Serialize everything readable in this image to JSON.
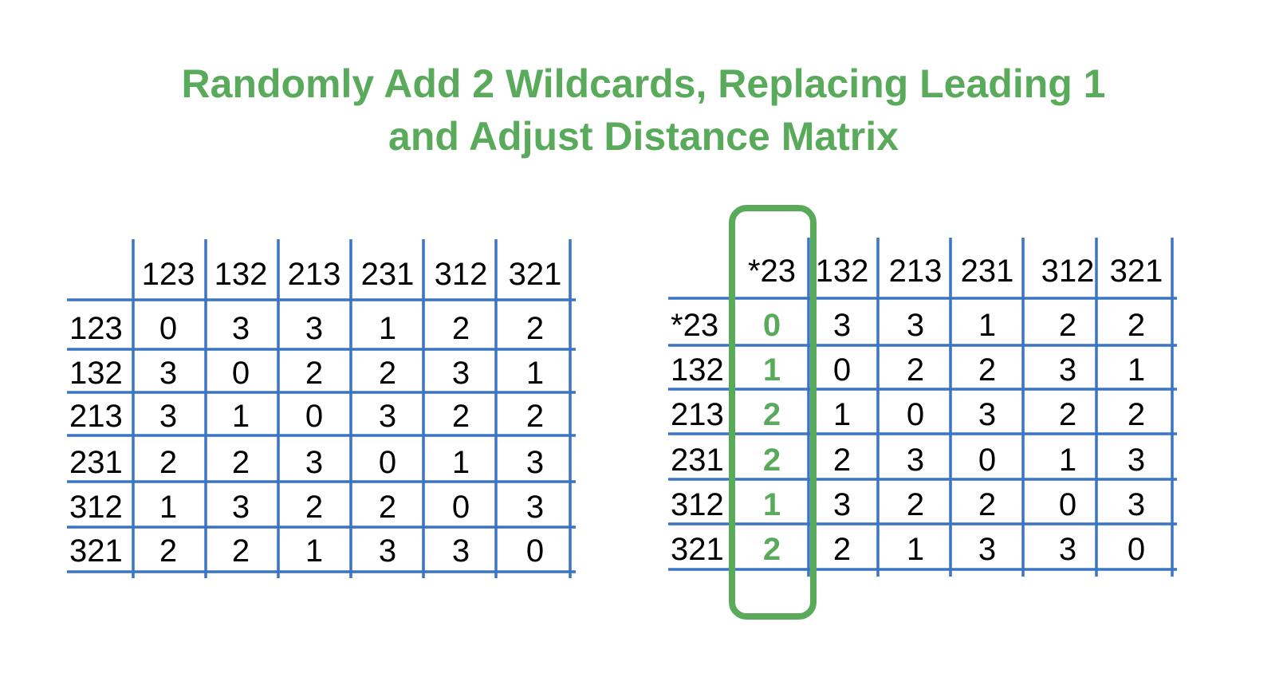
{
  "title": {
    "line1": "Randomly Add 2 Wildcards, Replacing Leading 1",
    "line2": "and Adjust Distance Matrix"
  },
  "colors": {
    "accent": "#5aaa5c",
    "grid": "#3a74c4",
    "text": "#000000"
  },
  "left_matrix": {
    "col_headers": [
      "123",
      "132",
      "213",
      "231",
      "312",
      "321"
    ],
    "row_headers": [
      "123",
      "132",
      "213",
      "231",
      "312",
      "321"
    ],
    "rows": [
      [
        "0",
        "3",
        "3",
        "1",
        "2",
        "2"
      ],
      [
        "3",
        "0",
        "2",
        "2",
        "3",
        "1"
      ],
      [
        "3",
        "1",
        "0",
        "3",
        "2",
        "2"
      ],
      [
        "2",
        "2",
        "3",
        "0",
        "1",
        "3"
      ],
      [
        "1",
        "3",
        "2",
        "2",
        "0",
        "3"
      ],
      [
        "2",
        "2",
        "1",
        "3",
        "3",
        "0"
      ]
    ]
  },
  "right_matrix": {
    "col_headers": [
      "*23",
      "132",
      "213",
      "231",
      "312",
      "321"
    ],
    "row_headers": [
      "*23",
      "132",
      "213",
      "231",
      "312",
      "321"
    ],
    "rows": [
      [
        "0",
        "3",
        "3",
        "1",
        "2",
        "2"
      ],
      [
        "1",
        "0",
        "2",
        "2",
        "3",
        "1"
      ],
      [
        "2",
        "1",
        "0",
        "3",
        "2",
        "2"
      ],
      [
        "2",
        "2",
        "3",
        "0",
        "1",
        "3"
      ],
      [
        "1",
        "3",
        "2",
        "2",
        "0",
        "3"
      ],
      [
        "2",
        "2",
        "1",
        "3",
        "3",
        "0"
      ]
    ],
    "highlighted_column": 0
  }
}
